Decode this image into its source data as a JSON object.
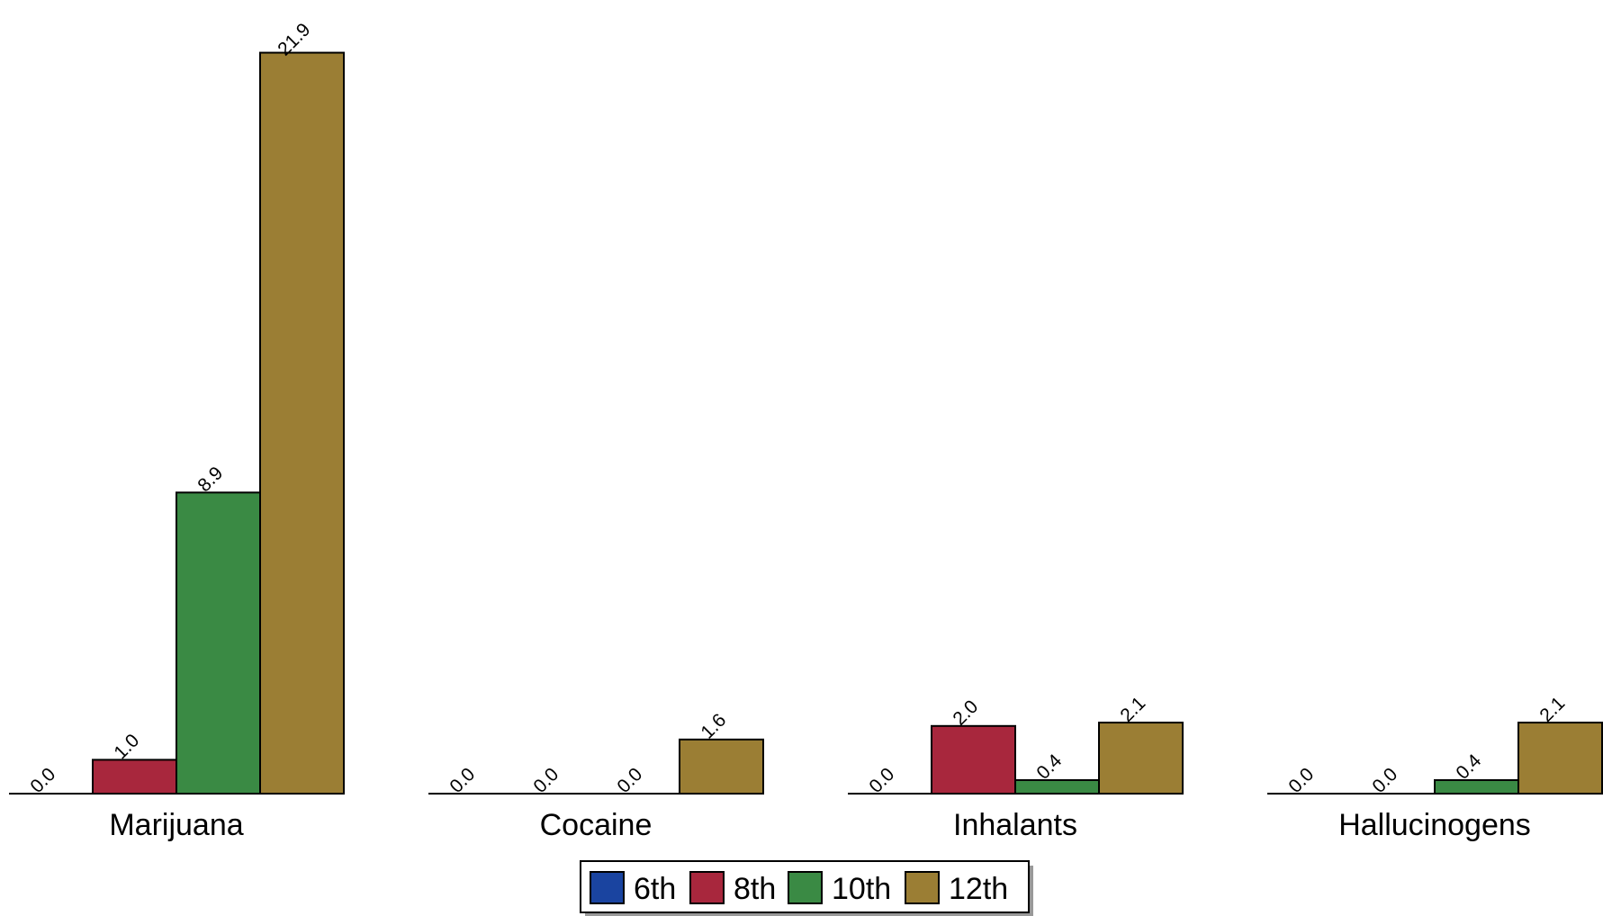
{
  "chart_data": {
    "type": "bar",
    "title": "",
    "xlabel": "",
    "ylabel": "",
    "categories": [
      "Marijuana",
      "Cocaine",
      "Inhalants",
      "Hallucinogens"
    ],
    "series": [
      {
        "name": "6th",
        "color": "#1a44a0",
        "values": [
          0.0,
          0.0,
          0.0,
          0.0
        ]
      },
      {
        "name": "8th",
        "color": "#a8273d",
        "values": [
          1.0,
          0.0,
          2.0,
          0.0
        ]
      },
      {
        "name": "10th",
        "color": "#3a8a44",
        "values": [
          8.9,
          0.0,
          0.4,
          0.4
        ]
      },
      {
        "name": "12th",
        "color": "#9b7e34",
        "values": [
          21.9,
          1.6,
          2.1,
          2.1
        ]
      }
    ],
    "value_labels": [
      [
        "0.0",
        "1.0",
        "8.9",
        "21.9"
      ],
      [
        "0.0",
        "0.0",
        "0.0",
        "1.6"
      ],
      [
        "0.0",
        "2.0",
        "0.4",
        "2.1"
      ],
      [
        "0.0",
        "0.0",
        "0.4",
        "2.1"
      ]
    ],
    "ylim": [
      0,
      22
    ],
    "y_axis_shown": false,
    "grid": false,
    "value_labels_rotated": true,
    "legend_position": "bottom-center"
  }
}
